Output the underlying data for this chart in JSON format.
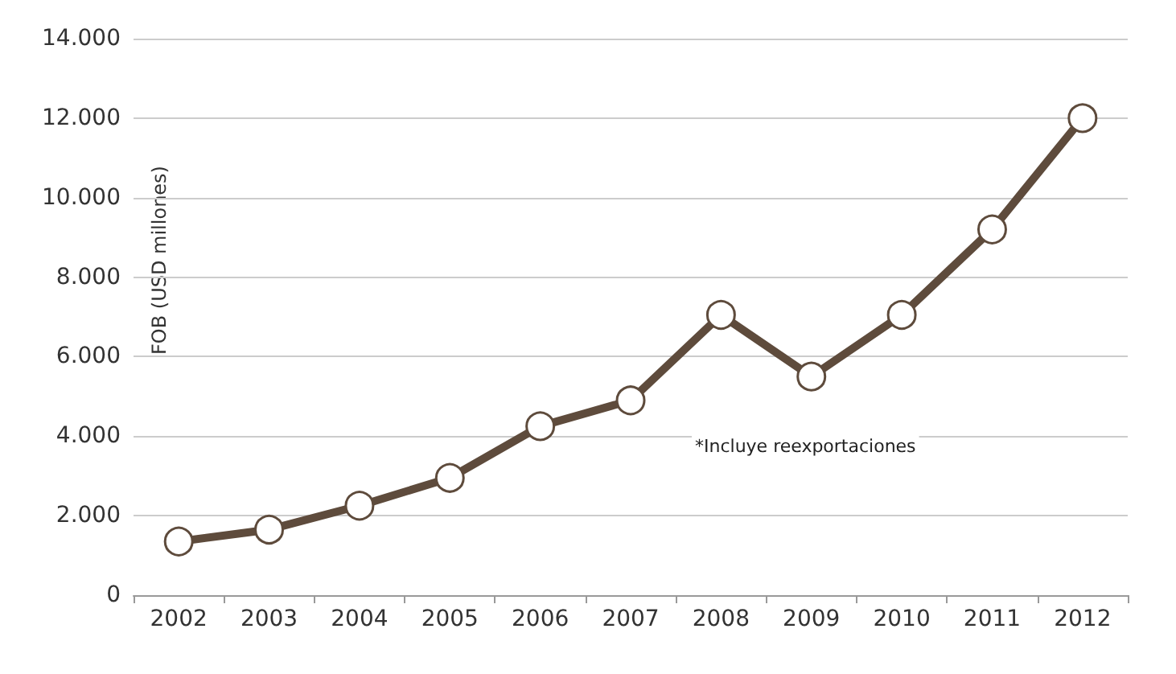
{
  "chart_data": {
    "type": "line",
    "ylabel": "FOB (USD millones)",
    "annotations": [
      "*Incluye reexportaciones"
    ],
    "categories": [
      "2002",
      "2003",
      "2004",
      "2005",
      "2006",
      "2007",
      "2008",
      "2009",
      "2010",
      "2011",
      "2012"
    ],
    "series": [
      {
        "color": "#5e4b3c",
        "values": [
          1350,
          1650,
          2250,
          2950,
          4250,
          4900,
          7050,
          5500,
          7050,
          9200,
          12000
        ]
      }
    ],
    "ylim": [
      0,
      14000
    ],
    "yticks": [
      {
        "value": 0,
        "label": "0"
      },
      {
        "value": 2000,
        "label": "2.000"
      },
      {
        "value": 4000,
        "label": "4.000"
      },
      {
        "value": 6000,
        "label": "6.000"
      },
      {
        "value": 8000,
        "label": "8.000"
      },
      {
        "value": 10000,
        "label": "10.000"
      },
      {
        "value": 12000,
        "label": "12.000"
      },
      {
        "value": 14000,
        "label": "14.000"
      }
    ],
    "grid": "y",
    "marker": "circle",
    "line_style": "solid"
  }
}
